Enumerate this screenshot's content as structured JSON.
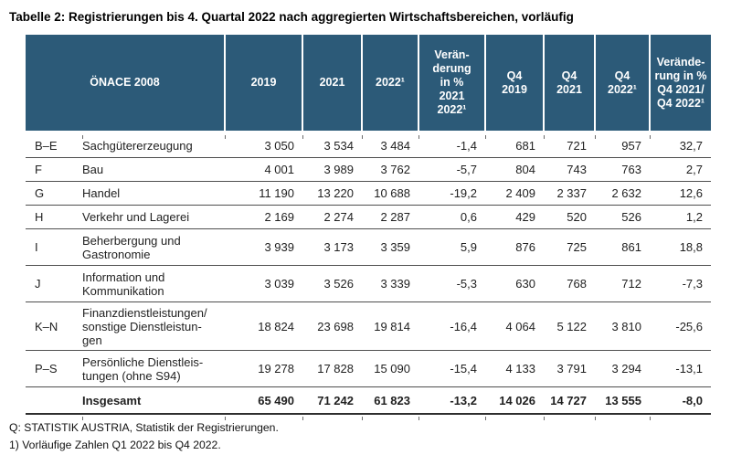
{
  "title": "Tabelle 2: Registrierungen bis 4. Quartal 2022 nach aggregierten Wirtschaftsbereichen, vorläufig",
  "colors": {
    "header_bg": "#2C5A78",
    "header_text": "#FFFFFF",
    "row_line": "#4F4F4F",
    "text": "#1F1F1F"
  },
  "table": {
    "header": {
      "onace": "ÖNACE 2008",
      "col_2019": "2019",
      "col_2021": "2021",
      "col_2022": "2022¹",
      "col_change_year": "Verän-\nderung\nin %\n2021\n2022¹",
      "col_q4_2019": "Q4\n2019",
      "col_q4_2021": "Q4\n2021",
      "col_q4_2022": "Q4\n2022¹",
      "col_change_q4": "Verände-\nrung in %\nQ4 2021/\nQ4 2022¹"
    },
    "rows": [
      {
        "code": "B–E",
        "name": "Sachgütererzeugung",
        "values": [
          "3 050",
          "3 534",
          "3 484",
          "-1,4",
          "681",
          "721",
          "957",
          "32,7"
        ]
      },
      {
        "code": "F",
        "name": "Bau",
        "values": [
          "4 001",
          "3 989",
          "3 762",
          "-5,7",
          "804",
          "743",
          "763",
          "2,7"
        ]
      },
      {
        "code": "G",
        "name": "Handel",
        "values": [
          "11 190",
          "13 220",
          "10 688",
          "-19,2",
          "2 409",
          "2 337",
          "2 632",
          "12,6"
        ]
      },
      {
        "code": "H",
        "name": "Verkehr und Lagerei",
        "values": [
          "2 169",
          "2 274",
          "2 287",
          "0,6",
          "429",
          "520",
          "526",
          "1,2"
        ]
      },
      {
        "code": "I",
        "name": "Beherbergung und\nGastronomie",
        "values": [
          "3 939",
          "3 173",
          "3 359",
          "5,9",
          "876",
          "725",
          "861",
          "18,8"
        ]
      },
      {
        "code": "J",
        "name": "Information und\nKommunikation",
        "values": [
          "3 039",
          "3 526",
          "3 339",
          "-5,3",
          "630",
          "768",
          "712",
          "-7,3"
        ]
      },
      {
        "code": "K–N",
        "name": "Finanzdienstleistungen/\nsonstige Dienstleistun-\ngen",
        "values": [
          "18 824",
          "23 698",
          "19 814",
          "-16,4",
          "4 064",
          "5 122",
          "3 810",
          "-25,6"
        ]
      },
      {
        "code": "P–S",
        "name": "Persönliche Dienstleis-\ntungen (ohne S94)",
        "values": [
          "19 278",
          "17 828",
          "15 090",
          "-15,4",
          "4 133",
          "3 791",
          "3 294",
          "-13,1"
        ]
      }
    ],
    "total": {
      "label": "Insgesamt",
      "values": [
        "65 490",
        "71 242",
        "61 823",
        "-13,2",
        "14 026",
        "14 727",
        "13 555",
        "-8,0"
      ]
    }
  },
  "footnotes": {
    "source": "Q: STATISTIK AUSTRIA, Statistik der Registrierungen.",
    "note1": "1) Vorläufige Zahlen Q1 2022 bis Q4 2022."
  }
}
